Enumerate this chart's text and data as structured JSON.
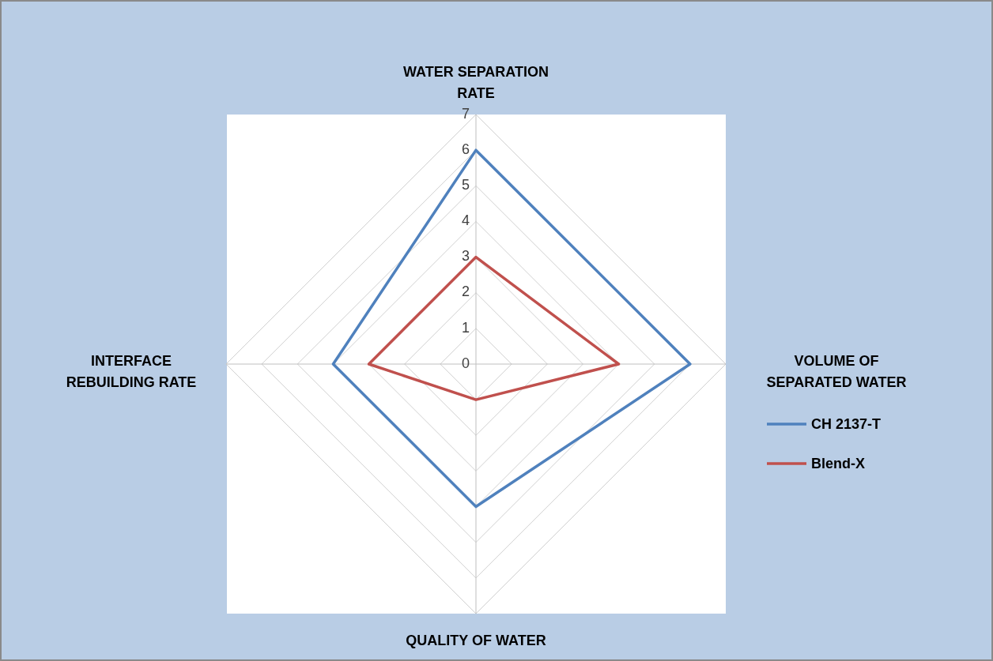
{
  "chart_data": {
    "type": "radar",
    "categories": [
      "WATER SEPARATION RATE",
      "VOLUME OF SEPARATED WATER",
      "QUALITY OF WATER",
      "INTERFACE REBUILDING RATE"
    ],
    "series": [
      {
        "name": "CH 2137-T",
        "color": "#4f81bd",
        "values": [
          6,
          6,
          4,
          4
        ]
      },
      {
        "name": "Blend-X",
        "color": "#c0504d",
        "values": [
          3,
          4,
          1,
          3
        ]
      }
    ],
    "ylim": [
      0,
      7
    ],
    "yticks": [
      0,
      1,
      2,
      3,
      4,
      5,
      6,
      7
    ],
    "grid": true,
    "legend": "right",
    "marker": "none"
  }
}
